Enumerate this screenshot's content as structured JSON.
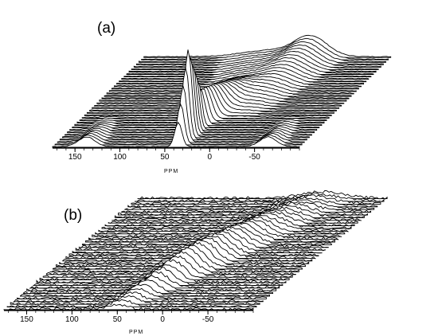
{
  "chart_data": [
    {
      "type": "stacked-spectra",
      "panel_label": "(a)",
      "xlabel": "PPM",
      "x_ticks": [
        150,
        100,
        50,
        0,
        -50
      ],
      "x_tick_labels": [
        "150",
        "100",
        "50",
        "0",
        "-50"
      ],
      "xlim": [
        175,
        -100
      ],
      "trace_count": 38,
      "series": [
        {
          "peak_ppm": 35,
          "relative_height": 1.0,
          "evolution": "decays then re-grows broadened along stack"
        },
        {
          "peak_ppm": 137,
          "relative_height": 0.12,
          "evolution": "satellite, front traces"
        },
        {
          "peak_ppm": -65,
          "relative_height": 0.12,
          "evolution": "satellite, front traces"
        }
      ]
    },
    {
      "type": "stacked-spectra",
      "panel_label": "(b)",
      "xlabel": "PPM",
      "x_ticks": [
        150,
        100,
        50,
        0,
        -50
      ],
      "x_tick_labels": [
        "150",
        "100",
        "50",
        "0",
        "-50"
      ],
      "xlim": [
        175,
        -100
      ],
      "trace_count": 42,
      "series": [
        {
          "peak_ppm": 50,
          "relative_height": 0.25,
          "evolution": "broad noisy ridge drifting upfield along stack"
        }
      ]
    }
  ]
}
